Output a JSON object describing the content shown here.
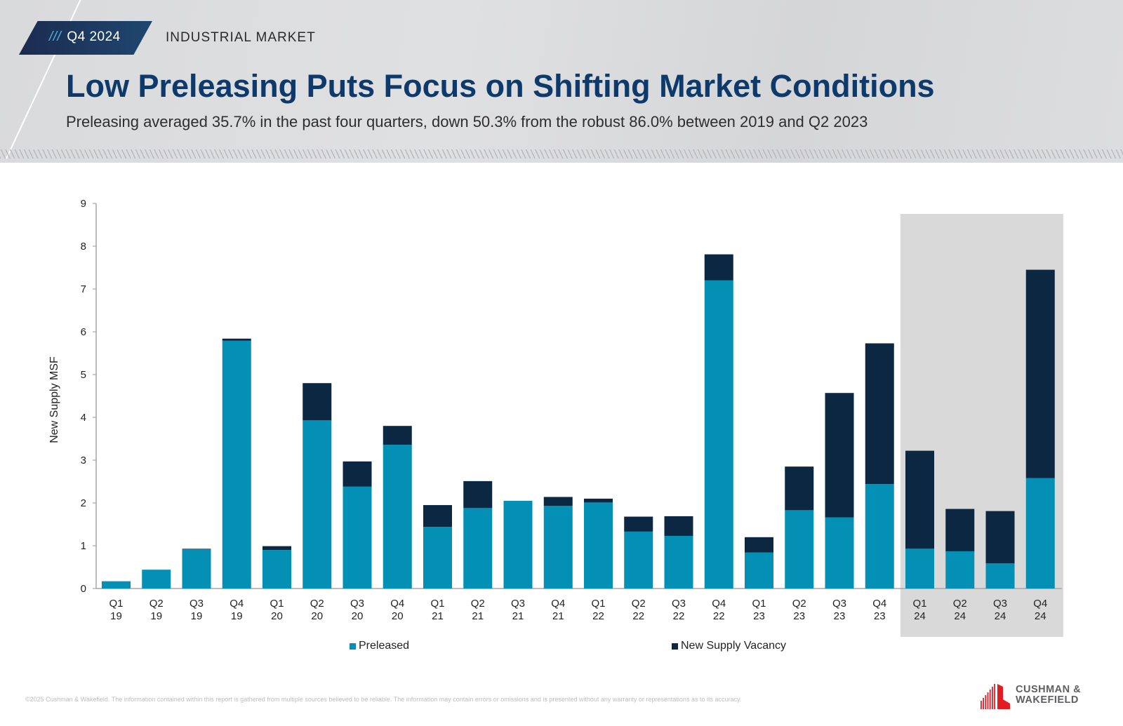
{
  "header": {
    "badge_ticks": "///",
    "badge_label": "Q4 2024",
    "section": "INDUSTRIAL MARKET",
    "title": "Low Preleasing Puts Focus on Shifting Market Conditions",
    "subtitle": "Preleasing averaged 35.7% in the past four quarters, down 50.3% from the robust 86.0% between 2019 and Q2 2023"
  },
  "colors": {
    "preleased": "#0490b4",
    "vacancy": "#0c2742",
    "highlight": "#d9d9d9",
    "title": "#0d3a6b",
    "logo_red": "#e31b23"
  },
  "chart_data": {
    "type": "bar",
    "stacked": true,
    "title": "",
    "xlabel": "",
    "ylabel": "New Supply MSF",
    "ylim": [
      0,
      9
    ],
    "yticks": [
      0,
      1,
      2,
      3,
      4,
      5,
      6,
      7,
      8,
      9
    ],
    "grid": false,
    "legend_position": "bottom",
    "highlight_range": [
      "Q1 24",
      "Q4 24"
    ],
    "categories": [
      [
        "Q1",
        "19"
      ],
      [
        "Q2",
        "19"
      ],
      [
        "Q3",
        "19"
      ],
      [
        "Q4",
        "19"
      ],
      [
        "Q1",
        "20"
      ],
      [
        "Q2",
        "20"
      ],
      [
        "Q3",
        "20"
      ],
      [
        "Q4",
        "20"
      ],
      [
        "Q1",
        "21"
      ],
      [
        "Q2",
        "21"
      ],
      [
        "Q3",
        "21"
      ],
      [
        "Q4",
        "21"
      ],
      [
        "Q1",
        "22"
      ],
      [
        "Q2",
        "22"
      ],
      [
        "Q3",
        "22"
      ],
      [
        "Q4",
        "22"
      ],
      [
        "Q1",
        "23"
      ],
      [
        "Q2",
        "23"
      ],
      [
        "Q3",
        "23"
      ],
      [
        "Q4",
        "23"
      ],
      [
        "Q1",
        "24"
      ],
      [
        "Q2",
        "24"
      ],
      [
        "Q3",
        "24"
      ],
      [
        "Q4",
        "24"
      ]
    ],
    "series": [
      {
        "name": "Preleased",
        "color_key": "preleased",
        "values": [
          0.17,
          0.44,
          0.92,
          5.79,
          0.9,
          3.93,
          2.38,
          3.36,
          1.44,
          1.88,
          2.05,
          1.93,
          2.01,
          1.33,
          1.23,
          7.2,
          0.84,
          1.83,
          1.66,
          2.44,
          0.93,
          0.87,
          0.59,
          2.58
        ]
      },
      {
        "name": "New Supply Vacancy",
        "color_key": "vacancy",
        "values": [
          0.0,
          0.0,
          0.01,
          0.05,
          0.09,
          0.87,
          0.59,
          0.44,
          0.51,
          0.63,
          0.0,
          0.21,
          0.09,
          0.35,
          0.46,
          0.61,
          0.36,
          1.02,
          2.91,
          3.29,
          2.29,
          0.99,
          1.22,
          4.87
        ]
      }
    ]
  },
  "legend": [
    {
      "label": "Preleased"
    },
    {
      "label": "New Supply Vacancy"
    }
  ],
  "footer": {
    "disclaimer": "©2025 Cushman & Wakefield. The information contained within this report is gathered from multiple sources believed to be reliable. The information may contain errors or omissions and is presented without any warranty or representations as to its accuracy.",
    "logo_line1": "CUSHMAN &",
    "logo_line2": "WAKEFIELD"
  }
}
